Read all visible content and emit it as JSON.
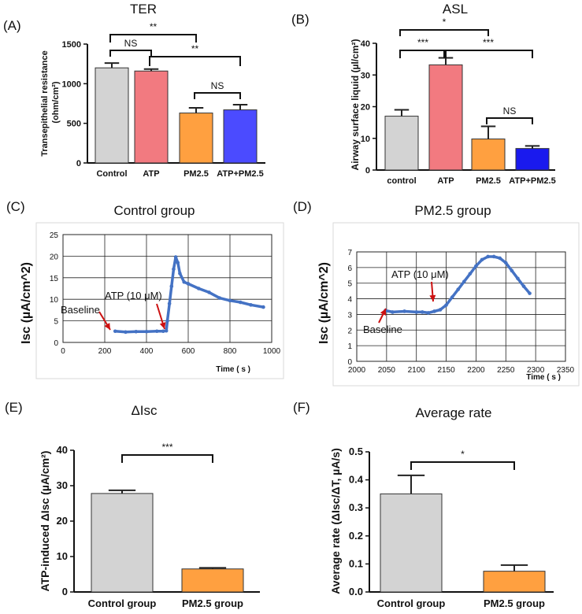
{
  "figure": {
    "A": {
      "letter": "(A)",
      "title": "TER"
    },
    "B": {
      "letter": "(B)",
      "title": "ASL"
    },
    "C": {
      "letter": "(C)",
      "title": "Control group"
    },
    "D": {
      "letter": "(D)",
      "title": "PM2.5 group"
    },
    "E": {
      "letter": "(E)",
      "title": "ΔIsc"
    },
    "F": {
      "letter": "(F)",
      "title": "Average rate"
    }
  },
  "colors": {
    "gray": "#d3d3d3",
    "pink": "#f27a80",
    "orange": "#ffa040",
    "blue": "#4b4bff",
    "line": "#4472c4",
    "arrow": "#cc1111"
  },
  "chart_data": [
    {
      "id": "A",
      "type": "bar",
      "title": "TER",
      "ylabel": "Transepithelial resistance (ohm/cm²)",
      "ylim": [
        0,
        1500
      ],
      "yticks": [
        "0",
        "500",
        "1000",
        "1500"
      ],
      "categories": [
        "Control",
        "ATP",
        "PM2.5",
        "ATP+PM2.5"
      ],
      "values": [
        1200,
        1160,
        630,
        670
      ],
      "errors": [
        60,
        25,
        65,
        65
      ],
      "colors": [
        "#d3d3d3",
        "#f27a80",
        "#ffa040",
        "#4b4bff"
      ],
      "significance": [
        {
          "from": 0,
          "to": 1,
          "label": "NS"
        },
        {
          "from": 0,
          "to": 2,
          "label": "**"
        },
        {
          "from": 1,
          "to": 3,
          "label": "**"
        },
        {
          "from": 2,
          "to": 3,
          "label": "NS"
        }
      ]
    },
    {
      "id": "B",
      "type": "bar",
      "title": "ASL",
      "ylabel": "Airway surface liquid (µl/cm²)",
      "ylim": [
        0,
        40
      ],
      "yticks": [
        "0",
        "10",
        "20",
        "30",
        "40"
      ],
      "categories": [
        "control",
        "ATP",
        "PM2.5",
        "ATP+PM2.5"
      ],
      "values": [
        17,
        33.2,
        9.8,
        6.8
      ],
      "errors": [
        2,
        2.2,
        4,
        0.8
      ],
      "colors": [
        "#d3d3d3",
        "#f27a80",
        "#ffa040",
        "#1a1aee"
      ],
      "significance": [
        {
          "from": 0,
          "to": 2,
          "label": "*"
        },
        {
          "from": 0,
          "to": 1,
          "label": "***"
        },
        {
          "from": 1,
          "to": 3,
          "label": "***"
        },
        {
          "from": 2,
          "to": 3,
          "label": "NS"
        }
      ]
    },
    {
      "id": "C",
      "type": "line",
      "title": "Control group",
      "ylabel": "Isc  (µA/cm^2)",
      "xlabel": "Time ( s )",
      "xlim": [
        0,
        1000
      ],
      "ylim": [
        0,
        25
      ],
      "xticks": [
        "0",
        "200",
        "400",
        "600",
        "800",
        "1000"
      ],
      "yticks": [
        "0",
        "5",
        "10",
        "15",
        "20",
        "25"
      ],
      "x": [
        250,
        300,
        350,
        400,
        450,
        480,
        495,
        500,
        510,
        520,
        530,
        540,
        550,
        560,
        580,
        600,
        650,
        700,
        750,
        800,
        850,
        900,
        960
      ],
      "y": [
        2.6,
        2.4,
        2.5,
        2.5,
        2.6,
        2.6,
        2.7,
        5,
        9,
        13,
        17,
        19.8,
        18.5,
        16,
        14,
        13.6,
        12.5,
        11.6,
        10.3,
        9.7,
        9.3,
        8.7,
        8.2
      ],
      "annotations": [
        {
          "label": "Baseline",
          "x": 250,
          "y": 2.6
        },
        {
          "label": "ATP (10 μM)",
          "x": 495,
          "y": 2.7
        }
      ]
    },
    {
      "id": "D",
      "type": "line",
      "title": "PM2.5 group",
      "ylabel": "Isc  (µA/cm^2)",
      "xlabel": "Time ( s )",
      "xlim": [
        2000,
        2350
      ],
      "ylim": [
        0,
        7
      ],
      "xticks": [
        "2000",
        "2050",
        "2100",
        "2150",
        "2200",
        "2250",
        "2300",
        "2350"
      ],
      "yticks": [
        "0",
        "1",
        "2",
        "3",
        "4",
        "5",
        "6",
        "7"
      ],
      "x": [
        2048,
        2060,
        2080,
        2100,
        2110,
        2120,
        2130,
        2140,
        2150,
        2160,
        2170,
        2180,
        2190,
        2200,
        2210,
        2220,
        2230,
        2240,
        2250,
        2260,
        2270,
        2280,
        2290
      ],
      "y": [
        3.25,
        3.15,
        3.2,
        3.15,
        3.15,
        3.1,
        3.2,
        3.3,
        3.6,
        4.1,
        4.6,
        5.1,
        5.6,
        6.1,
        6.5,
        6.7,
        6.7,
        6.6,
        6.3,
        5.8,
        5.3,
        4.8,
        4.35
      ],
      "annotations": [
        {
          "label": "Baseline",
          "x": 2048,
          "y": 3.25
        },
        {
          "label": "ATP (10 μM)",
          "x": 2130,
          "y": 3.2
        }
      ]
    },
    {
      "id": "E",
      "type": "bar",
      "title": "ΔIsc",
      "ylabel": "ATP-induced ΔIsc (µA/cm²)",
      "ylim": [
        0,
        40
      ],
      "yticks": [
        "0",
        "10",
        "20",
        "30",
        "40"
      ],
      "categories": [
        "Control group",
        "PM2.5 group"
      ],
      "values": [
        27.8,
        6.5
      ],
      "errors": [
        0.9,
        0.3
      ],
      "colors": [
        "#d3d3d3",
        "#ffa040"
      ],
      "significance": [
        {
          "from": 0,
          "to": 1,
          "label": "***"
        }
      ]
    },
    {
      "id": "F",
      "type": "bar",
      "title": "Average rate",
      "ylabel": "Average rate (ΔIsc/ΔT, µA/s)",
      "ylim": [
        0,
        0.5
      ],
      "yticks": [
        "0.0",
        "0.1",
        "0.2",
        "0.3",
        "0.4",
        "0.5"
      ],
      "categories": [
        "Control group",
        "PM2.5 group"
      ],
      "values": [
        0.35,
        0.074
      ],
      "errors": [
        0.066,
        0.022
      ],
      "colors": [
        "#d3d3d3",
        "#ffa040"
      ],
      "significance": [
        {
          "from": 0,
          "to": 1,
          "label": "*"
        }
      ]
    }
  ]
}
